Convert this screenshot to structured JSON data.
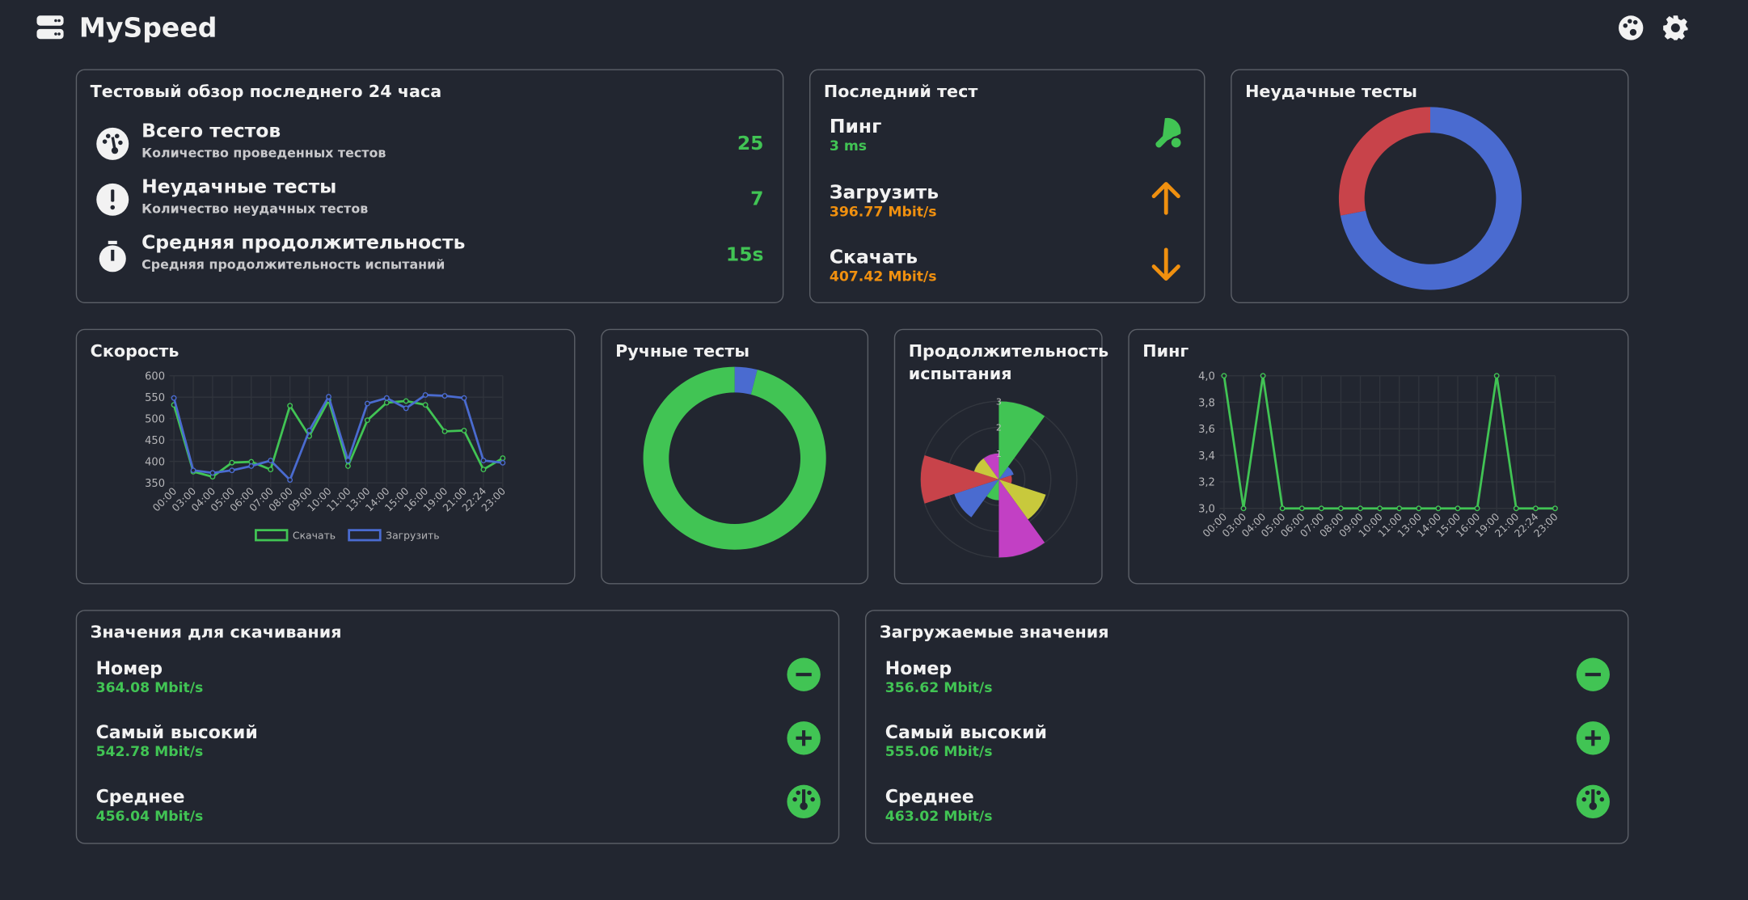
{
  "header": {
    "title": "MySpeed"
  },
  "overview": {
    "title": "Тестовый обзор последнего 24 часа",
    "items": [
      {
        "title": "Всего тестов",
        "subtitle": "Количество проведенных тестов",
        "value": 25
      },
      {
        "title": "Неудачные тесты",
        "subtitle": "Количество неудачных тестов",
        "value": 7
      },
      {
        "title": "Средняя продолжительность",
        "subtitle": "Средняя продолжительность испытаний",
        "value": "15s"
      }
    ]
  },
  "last_test": {
    "title": "Последний тест",
    "items": [
      {
        "label": "Пинг",
        "value": "3 ms"
      },
      {
        "label": "Загрузить",
        "value": "396.77 Mbit/s"
      },
      {
        "label": "Скачать",
        "value": "407.42 Mbit/s"
      }
    ]
  },
  "chart_data": [
    {
      "type": "doughnut",
      "title": "Неудачные тесты",
      "values": [
        18,
        7
      ],
      "colors": [
        "#4a6bd0",
        "#c8434a"
      ]
    },
    {
      "type": "line",
      "title": "Скорость",
      "categories": [
        "00:00",
        "03:00",
        "04:00",
        "05:00",
        "06:00",
        "07:00",
        "08:00",
        "09:00",
        "10:00",
        "11:00",
        "13:00",
        "14:00",
        "15:00",
        "16:00",
        "19:00",
        "21:00",
        "22:24",
        "23:00"
      ],
      "series": [
        {
          "name": "Скачать",
          "color": "#41c454",
          "values": [
            532,
            376,
            364.08,
            397,
            399,
            381,
            530,
            459,
            542.78,
            389,
            496,
            537,
            541,
            532,
            470,
            472,
            381,
            407.42
          ]
        },
        {
          "name": "Загрузить",
          "color": "#4a6bd0",
          "values": [
            548,
            379,
            373,
            379,
            389,
            402,
            356.62,
            472,
            551,
            402,
            535,
            548,
            524,
            555.06,
            553,
            548,
            402,
            396.77
          ]
        }
      ],
      "ylim": [
        350,
        600
      ],
      "yticks": [
        350,
        400,
        450,
        500,
        550,
        600
      ],
      "grid": true,
      "legend": "bottom"
    },
    {
      "type": "doughnut",
      "title": "Ручные тесты",
      "values": [
        1,
        24
      ],
      "colors": [
        "#4a6bd0",
        "#41c454"
      ]
    },
    {
      "type": "polarArea",
      "title": "Продолжительность испытания",
      "values": [
        3,
        0.6,
        0.5,
        1.9,
        3,
        0.8,
        1.8,
        3,
        1,
        1
      ],
      "colors": [
        "#41c454",
        "#4a6bd0",
        "#c8434a",
        "#c8c93c",
        "#c240c4",
        "#41c454",
        "#4a6bd0",
        "#c8434a",
        "#c8c93c",
        "#c240c4"
      ],
      "rlim": [
        0,
        3
      ],
      "rticks": [
        1,
        2,
        3
      ]
    },
    {
      "type": "line",
      "title": "Пинг",
      "categories": [
        "00:00",
        "03:00",
        "04:00",
        "05:00",
        "06:00",
        "07:00",
        "08:00",
        "09:00",
        "10:00",
        "11:00",
        "13:00",
        "14:00",
        "15:00",
        "16:00",
        "19:00",
        "21:00",
        "22:24",
        "23:00"
      ],
      "series": [
        {
          "name": "Пинг",
          "color": "#41c454",
          "values": [
            4,
            3,
            4,
            3,
            3,
            3,
            3,
            3,
            3,
            3,
            3,
            3,
            3,
            3,
            4,
            3,
            3,
            3
          ]
        }
      ],
      "ylim": [
        3,
        4
      ],
      "yticks": [
        {
          "value": 3,
          "label": "3,0"
        },
        {
          "value": 3.2,
          "label": "3,2"
        },
        {
          "value": 3.4,
          "label": "3,4"
        },
        {
          "value": 3.6,
          "label": "3,6"
        },
        {
          "value": 3.8,
          "label": "3,8"
        },
        {
          "value": 4,
          "label": "4,0"
        }
      ],
      "grid": true
    }
  ],
  "download_values": {
    "title": "Значения для скачивания",
    "items": [
      {
        "label": "Номер",
        "value": "364.08 Mbit/s"
      },
      {
        "label": "Самый высокий",
        "value": "542.78 Mbit/s"
      },
      {
        "label": "Среднее",
        "value": "456.04 Mbit/s"
      }
    ]
  },
  "upload_values": {
    "title": "Загружаемые значения",
    "items": [
      {
        "label": "Номер",
        "value": "356.62 Mbit/s"
      },
      {
        "label": "Самый высокий",
        "value": "555.06 Mbit/s"
      },
      {
        "label": "Среднее",
        "value": "463.02 Mbit/s"
      }
    ]
  }
}
